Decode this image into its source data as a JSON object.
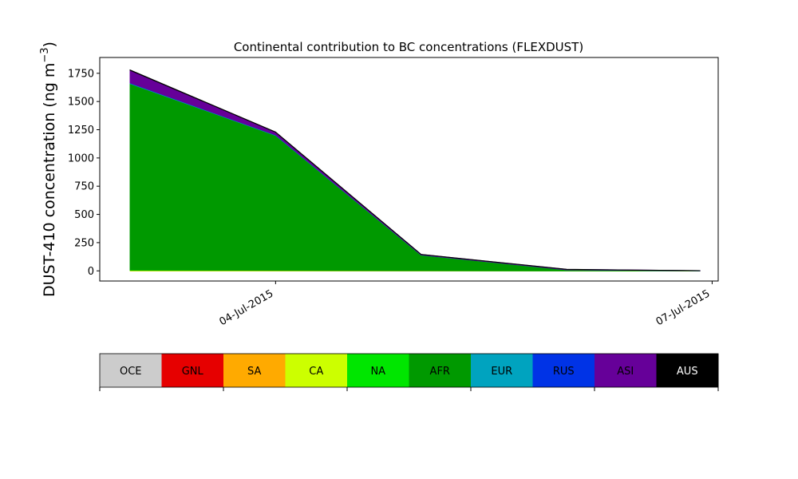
{
  "chart_data": {
    "type": "area",
    "stacked": true,
    "title": "Continental contribution to BC concentrations (FLEXDUST)",
    "ylabel": "DUST-410 concentration (ng m",
    "ylabel_exponent": "−3",
    "ylabel_close": ")",
    "xlabel": "",
    "ylim": [
      -90,
      1890
    ],
    "xlim": [
      "2015-07-02T19:00",
      "2015-07-07T01:00"
    ],
    "x": [
      "2015-07-03T00:00",
      "2015-07-04T00:00",
      "2015-07-05T00:00",
      "2015-07-06T00:00",
      "2015-07-06T22:00"
    ],
    "y_ticks": [
      0,
      250,
      500,
      750,
      1000,
      1250,
      1500,
      1750
    ],
    "y_tick_labels": [
      "0",
      "250",
      "500",
      "750",
      "1000",
      "1250",
      "1500",
      "1750"
    ],
    "x_ticks": [
      "2015-07-04T00:00",
      "2015-07-07T00:00"
    ],
    "x_tick_labels": [
      "04-Jul-2015",
      "07-Jul-2015"
    ],
    "series": [
      {
        "name": "OCE",
        "color": "#cccccc",
        "values": [
          0,
          0,
          0,
          0,
          0
        ]
      },
      {
        "name": "GNL",
        "color": "#e60000",
        "values": [
          0,
          0,
          0,
          0,
          0
        ]
      },
      {
        "name": "SA",
        "color": "#ffaa00",
        "values": [
          0,
          0,
          0,
          0,
          0
        ]
      },
      {
        "name": "CA",
        "color": "#ccff00",
        "values": [
          5,
          3,
          1,
          0,
          0
        ]
      },
      {
        "name": "NA",
        "color": "#00e600",
        "values": [
          3,
          2,
          1,
          0,
          0
        ]
      },
      {
        "name": "AFR",
        "color": "#009900",
        "values": [
          1650,
          1195,
          138,
          10,
          1
        ]
      },
      {
        "name": "EUR",
        "color": "#00a3bf",
        "values": [
          5,
          3,
          1,
          0,
          0
        ]
      },
      {
        "name": "RUS",
        "color": "#0033e6",
        "values": [
          2,
          2,
          0,
          0,
          0
        ]
      },
      {
        "name": "ASI",
        "color": "#660099",
        "values": [
          112,
          23,
          4,
          3,
          1
        ]
      },
      {
        "name": "AUS",
        "color": "#000000",
        "values": [
          3,
          2,
          1,
          1,
          0
        ]
      }
    ]
  }
}
